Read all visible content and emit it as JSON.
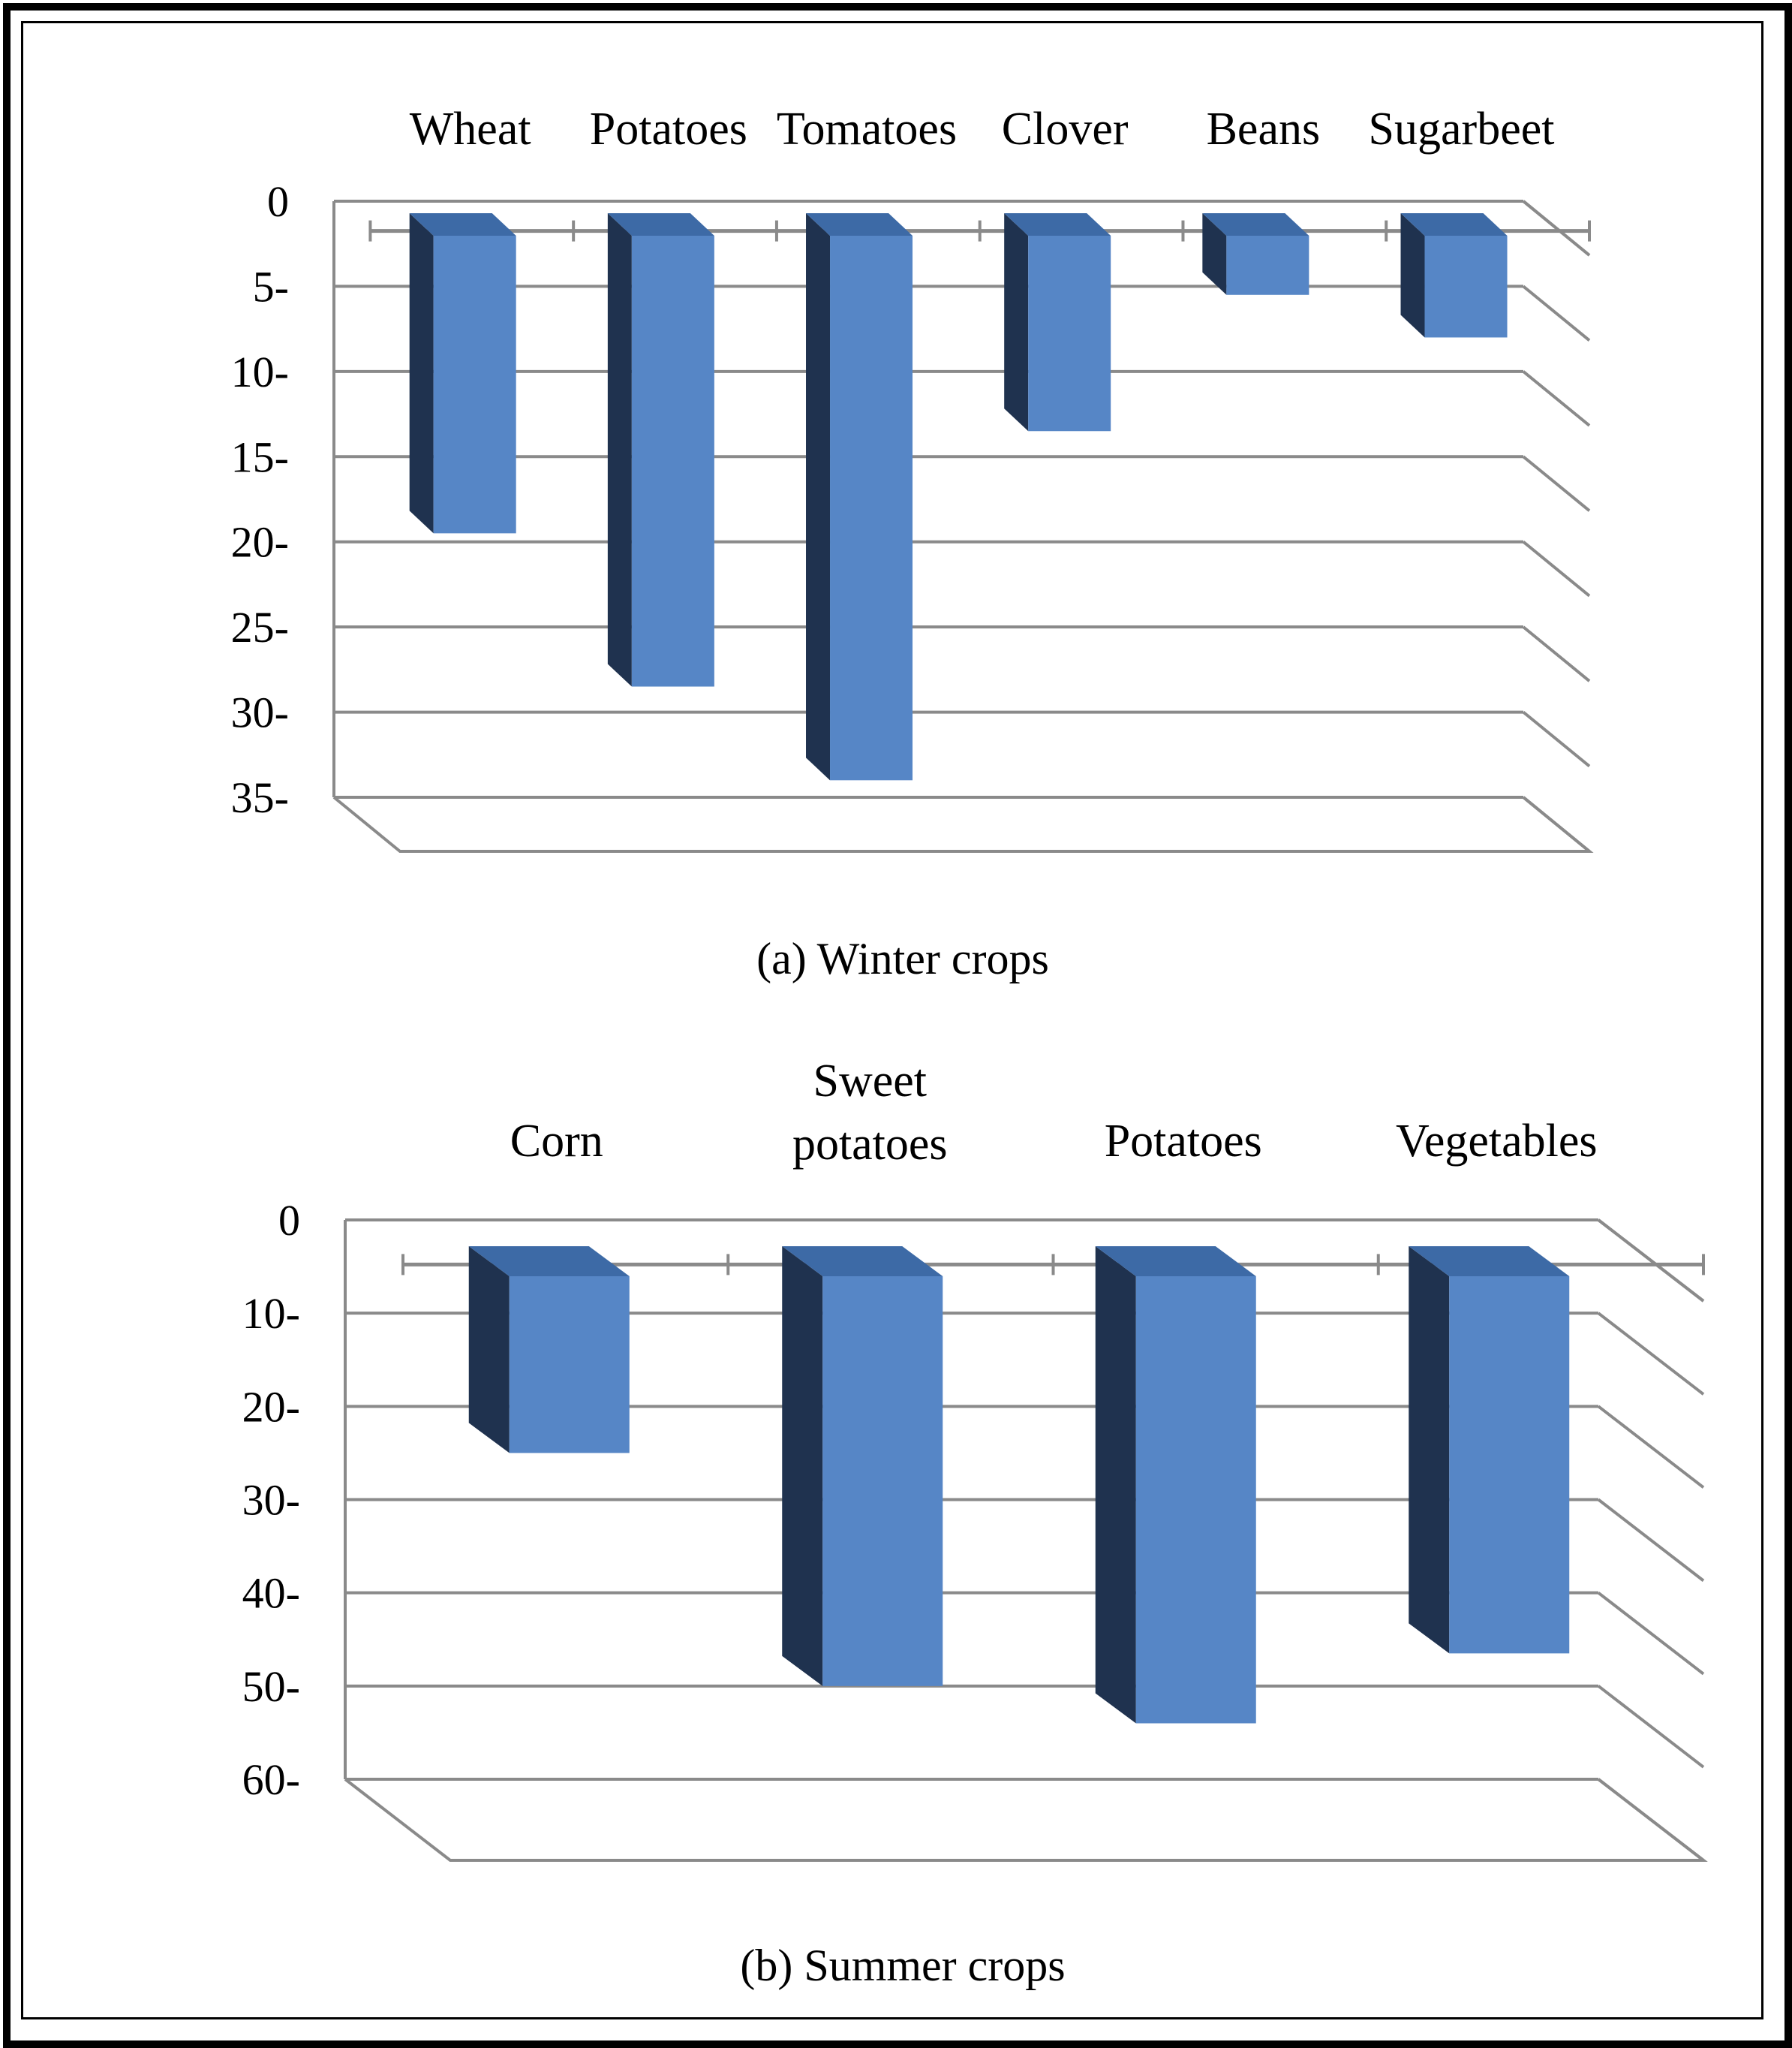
{
  "colors": {
    "bar_front": "#5686c6",
    "bar_top": "#3d6aa6",
    "bar_side": "#1f324f",
    "grid": "#8a8a8a",
    "text": "#000000"
  },
  "chart_data": [
    {
      "type": "bar",
      "orientation": "vertical-inverted-3d",
      "caption": "(a) Winter crops",
      "categories": [
        "Wheat",
        "Potatoes",
        "Tomatoes",
        "Clover",
        "Beans",
        "Sugarbeet"
      ],
      "values": [
        19.5,
        28.5,
        34,
        13.5,
        5.5,
        8
      ],
      "ylim": [
        0,
        35
      ],
      "yticks": [
        "0",
        "5-",
        "10-",
        "15-",
        "20-",
        "25-",
        "30-",
        "35-"
      ],
      "grid": true
    },
    {
      "type": "bar",
      "orientation": "vertical-inverted-3d",
      "caption": "(b) Summer crops",
      "categories": [
        "Corn",
        "Sweet potatoes",
        "Potatoes",
        "Vegetables"
      ],
      "values": [
        25,
        50,
        54,
        46.5
      ],
      "ylim": [
        0,
        60
      ],
      "yticks": [
        "0",
        "10-",
        "20-",
        "30-",
        "40-",
        "50-",
        "60-"
      ],
      "grid": true
    }
  ]
}
